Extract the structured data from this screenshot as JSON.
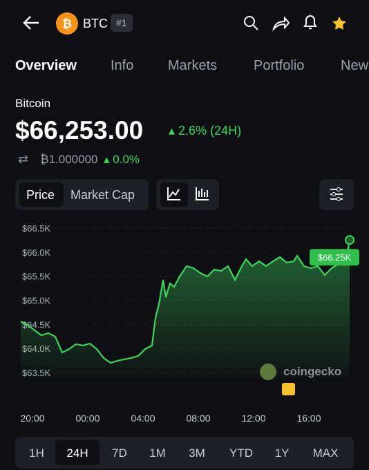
{
  "header": {
    "symbol": "BTC",
    "rank": "#1"
  },
  "tabs": [
    "Overview",
    "Info",
    "Markets",
    "Portfolio",
    "New"
  ],
  "coin": {
    "name": "Bitcoin",
    "price": "$66,253.00",
    "change": "2.6% (24H)",
    "btc_amount": "₿1.000000",
    "btc_change": "0.0%"
  },
  "toggles": [
    "Price",
    "Market Cap"
  ],
  "chart_data": {
    "type": "line",
    "color": "#3fd45c",
    "x": [
      -0.35,
      0.15,
      0.65,
      1.15,
      1.65,
      2.15,
      2.65,
      3.15,
      3.65,
      4.15,
      4.65,
      5.15,
      5.65,
      6.15,
      6.65,
      7.15,
      7.65,
      8.15,
      8.65,
      9.15,
      9.4,
      9.65,
      9.95,
      10.15,
      10.45,
      10.75,
      11.15,
      11.65,
      12.15,
      12.65,
      13.15,
      13.65,
      14.15,
      14.65,
      15.15,
      15.65,
      15.95,
      16.4,
      16.9,
      17.4,
      17.9,
      18.4,
      18.9,
      19.4,
      19.65,
      20.15,
      20.65,
      21.15,
      21.65,
      22.15,
      22.65,
      23.15,
      23.45
    ],
    "values": [
      64563,
      64491,
      64377,
      64276,
      64319,
      64247,
      63917,
      63989,
      64090,
      64061,
      64104,
      63989,
      63803,
      63702,
      63745,
      63774,
      63803,
      63846,
      63989,
      64061,
      64635,
      64922,
      65424,
      65065,
      65352,
      65280,
      65496,
      65711,
      65668,
      65567,
      65496,
      65639,
      65611,
      65711,
      65424,
      65711,
      65854,
      65711,
      65811,
      65711,
      65811,
      65897,
      65783,
      65811,
      65926,
      65711,
      65668,
      65711,
      65524,
      65668,
      65754,
      65811,
      66253
    ],
    "value_labels": [
      null,
      null,
      null,
      null,
      null,
      null,
      null,
      null,
      null,
      null,
      null,
      null,
      null,
      null,
      null,
      null,
      null,
      null,
      null,
      null,
      null,
      null,
      null,
      null,
      null,
      null,
      null,
      null,
      null,
      null,
      null,
      null,
      null,
      null,
      null,
      null,
      null,
      null,
      null,
      null,
      null,
      null,
      null,
      null,
      null,
      null,
      null,
      null,
      null,
      null,
      null,
      null,
      "$66.25K"
    ],
    "xlim": [
      -0.35,
      23.45
    ],
    "xticks": [
      {
        "value": 0,
        "label": "20:00"
      },
      {
        "value": 4,
        "label": "00:00"
      },
      {
        "value": 8,
        "label": "04:00"
      },
      {
        "value": 12,
        "label": "08:00"
      },
      {
        "value": 16,
        "label": "12:00"
      },
      {
        "value": 20,
        "label": "16:00"
      }
    ],
    "ylim": [
      63400,
      66750
    ],
    "yticks": [
      {
        "value": 63500,
        "label": "$63.5K"
      },
      {
        "value": 64000,
        "label": "$64.0K"
      },
      {
        "value": 64500,
        "label": "$64.5K"
      },
      {
        "value": 65000,
        "label": "$65.0K"
      },
      {
        "value": 65500,
        "label": "$65.5K"
      },
      {
        "value": 66000,
        "label": "$66.0K"
      },
      {
        "value": 66500,
        "label": "$66.5K"
      }
    ],
    "grid": true,
    "watermark": "coingecko"
  },
  "ranges": [
    "1H",
    "24H",
    "7D",
    "1M",
    "3M",
    "YTD",
    "1Y",
    "MAX"
  ]
}
